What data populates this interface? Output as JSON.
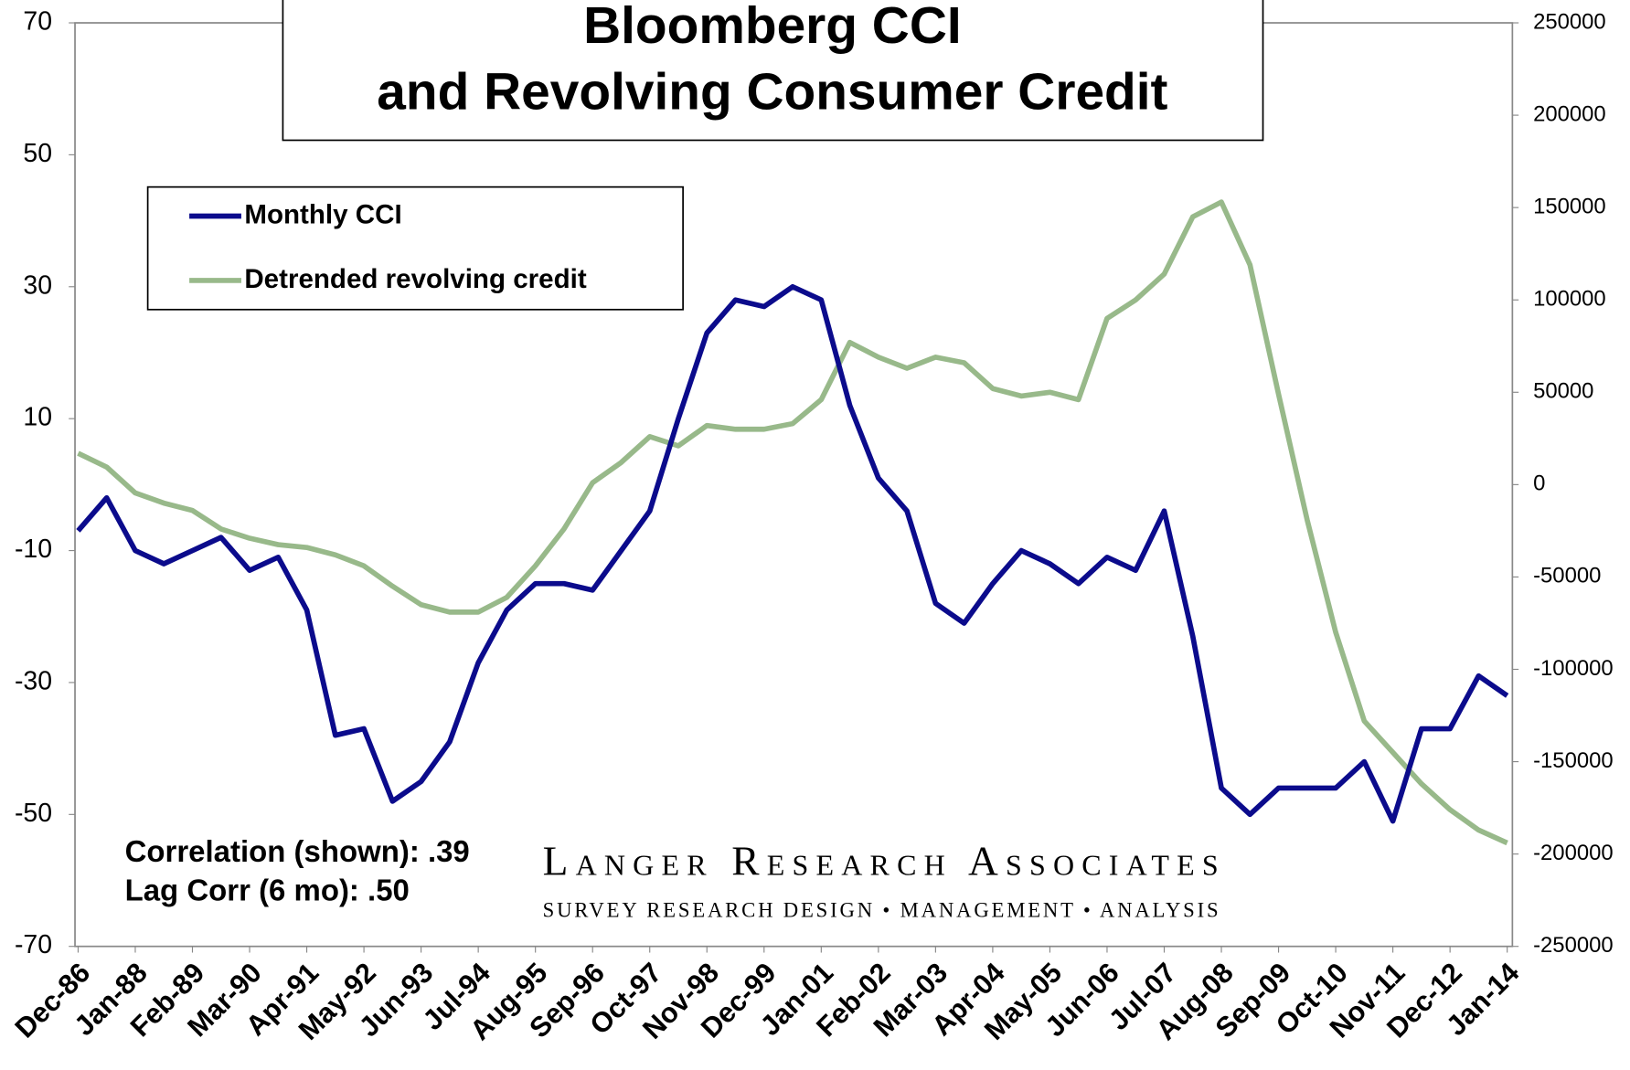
{
  "chart_data": {
    "type": "line",
    "title": [
      "Bloomberg CCI",
      "and Revolving Consumer Credit"
    ],
    "categories": [
      "Dec-86",
      null,
      "Jan-88",
      null,
      "Feb-89",
      null,
      "Mar-90",
      null,
      "Apr-91",
      null,
      "May-92",
      null,
      "Jun-93",
      null,
      "Jul-94",
      null,
      "Aug-95",
      null,
      "Sep-96",
      null,
      "Oct-97",
      null,
      "Nov-98",
      null,
      "Dec-99",
      null,
      "Jan-01",
      null,
      "Feb-02",
      null,
      "Mar-03",
      null,
      "Apr-04",
      null,
      "May-05",
      null,
      "Jun-06",
      null,
      "Jul-07",
      null,
      "Aug-08",
      null,
      "Sep-09",
      null,
      "Oct-10",
      null,
      "Nov-11",
      null,
      "Dec-12",
      null,
      "Jan-14"
    ],
    "series": [
      {
        "name": "Monthly CCI",
        "color": "#0b0b8c",
        "axis": "y",
        "values": [
          -7,
          -2,
          -10,
          -12,
          -10,
          -8,
          -13,
          -11,
          -19,
          -38,
          -37,
          -48,
          -45,
          -39,
          -27,
          -19,
          -15,
          -15,
          -16,
          -10,
          -4,
          10,
          23,
          28,
          27,
          30,
          28,
          12,
          1,
          -4,
          -18,
          -21,
          -15,
          -10,
          -12,
          -15,
          -11,
          -13,
          -4,
          -23,
          -46,
          -50,
          -46,
          -46,
          -46,
          -42,
          -51,
          -37,
          -37,
          -29,
          -32
        ]
      },
      {
        "name": "Detrended revolving credit",
        "color": "#98b98a",
        "axis": "y2",
        "values": [
          17000,
          9500,
          -4500,
          -10000,
          -14000,
          -24000,
          -29000,
          -32500,
          -34000,
          -38000,
          -44000,
          -55000,
          -65000,
          -69000,
          -69000,
          -61000,
          -44000,
          -24000,
          1000,
          12000,
          26000,
          21000,
          32000,
          30000,
          30000,
          33000,
          46000,
          77000,
          69000,
          63000,
          69000,
          66000,
          52000,
          48000,
          50000,
          46000,
          90000,
          100000,
          114000,
          145000,
          153000,
          119000,
          49000,
          -19000,
          -80000,
          -128000,
          -145000,
          -162000,
          -176000,
          -187000,
          -194000
        ]
      }
    ],
    "ylim": [
      -70,
      70
    ],
    "yticks": [
      70,
      50,
      30,
      10,
      -10,
      -30,
      -50,
      -70
    ],
    "y2lim": [
      -250000,
      250000
    ],
    "y2ticks": [
      250000,
      200000,
      150000,
      100000,
      50000,
      0,
      -50000,
      -100000,
      -150000,
      -200000,
      -250000
    ],
    "grid": false,
    "legend": "upper left",
    "annotations": [
      "Correlation (shown): .39",
      "Lag Corr (6 mo): .50"
    ],
    "logo": [
      "Langer Research Associates",
      "SURVEY RESEARCH DESIGN • MANAGEMENT • ANALYSIS"
    ]
  }
}
